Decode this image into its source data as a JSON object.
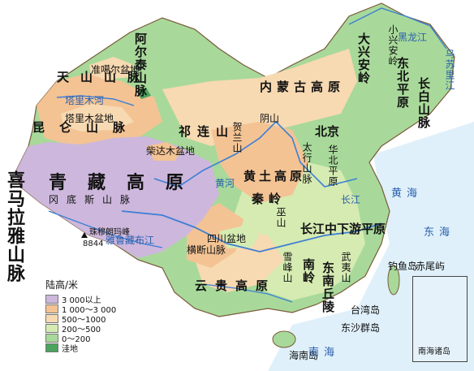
{
  "legend": {
    "title": "陆高/米",
    "items": [
      {
        "label": "3 000以上",
        "color": "#cdb7dc"
      },
      {
        "label": "1 000～3 000",
        "color": "#f3c394"
      },
      {
        "label": "500～1000",
        "color": "#f7d9b2"
      },
      {
        "label": "200～500",
        "color": "#d6ebb2"
      },
      {
        "label": "0～200",
        "color": "#a8d99a"
      },
      {
        "label": "洼地",
        "color": "#4aa35e"
      }
    ]
  },
  "colors": {
    "sea": "#dff0fa",
    "river": "#3d7fd4",
    "border": "#7a5a3a"
  },
  "labels": {
    "altai": "阿尔泰山脉",
    "junggar": "准噶尔盆地",
    "tianshan": "天山山脉",
    "tarim_river": "塔里木河",
    "tarim_basin": "塔里木盆地",
    "kunlun": "昆仑山脉",
    "qaidam": "柴达木盆地",
    "qilian": "祁连山",
    "helan": "贺兰山",
    "yinshan": "阴山",
    "neimenggu": "内蒙古高原",
    "daxinganling": "大兴安岭",
    "xiaoxinganling": "小兴安岭",
    "dongbei": "东北平原",
    "changbai": "长白山脉",
    "beijing": "北京",
    "taihang": "太行山脉",
    "huabei": "华北平原",
    "huangtu": "黄土高原",
    "qinling": "秦岭",
    "huanghe": "黄河",
    "qingzang": "青藏高原",
    "gangdise": "冈底斯山脉",
    "himalaya": "喜马拉雅山脉",
    "qomolangma": "珠穆朗玛峰",
    "qomolangma_height": "8844",
    "yarlung": "雅鲁藏布江",
    "sichuan": "四川盆地",
    "hengduan": "横断山脉",
    "wushan": "巫山",
    "changjiang_plain": "长江中下游平原",
    "changjiang": "长江",
    "xuefeng": "雪峰山",
    "nanling": "南岭",
    "wuyi": "武夷山",
    "yungui": "云贵高原",
    "dongnan": "东南丘陵",
    "diaoyu": "钓鱼岛",
    "chiwei": "赤尾屿",
    "taiwan": "台湾岛",
    "dongsha": "东沙群岛",
    "hainan": "海南岛",
    "nanhai_islands": "南海诸岛",
    "huang_hai": "黄海",
    "dong_hai": "东海",
    "nan_hai": "南海",
    "heilongjiang": "黑龙江",
    "wusulijiang": "乌苏里江",
    "river_h": "河",
    "river_he": "黄河"
  }
}
